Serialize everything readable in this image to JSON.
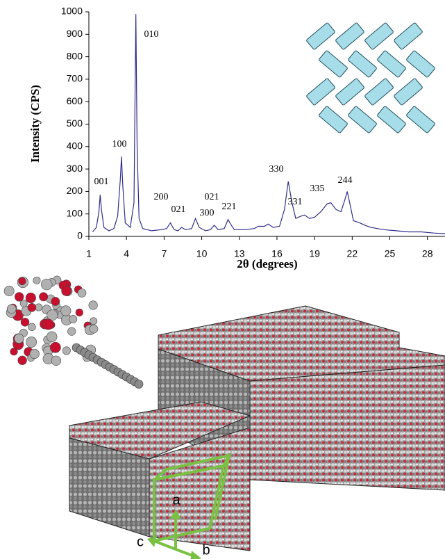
{
  "chart_data": {
    "type": "line",
    "x_label": "2θ (degrees)",
    "y_label": "Intensity (CPS)",
    "xlim": [
      1,
      29.4
    ],
    "ylim": [
      0,
      1000
    ],
    "xticks": [
      1,
      4,
      7,
      10,
      13,
      16,
      19,
      22,
      25,
      28
    ],
    "yticks": [
      0,
      100,
      200,
      300,
      400,
      500,
      600,
      700,
      800,
      900,
      1000
    ],
    "color": "#2e2e8c",
    "grid": false,
    "x": [
      1.3,
      1.6,
      1.8,
      1.9,
      2.0,
      2.2,
      2.6,
      3.0,
      3.3,
      3.5,
      3.6,
      3.7,
      3.9,
      4.3,
      4.6,
      4.75,
      4.85,
      5.0,
      5.3,
      6.0,
      6.8,
      7.2,
      7.5,
      7.8,
      8.1,
      8.4,
      8.7,
      9.2,
      9.5,
      9.8,
      10.3,
      10.7,
      11.0,
      11.3,
      11.8,
      12.1,
      12.3,
      12.6,
      13.5,
      14.2,
      14.5,
      15.0,
      15.3,
      15.7,
      16.2,
      16.6,
      16.9,
      17.2,
      17.5,
      17.9,
      18.2,
      18.6,
      19.0,
      19.5,
      20.0,
      20.3,
      20.7,
      21.1,
      21.4,
      21.6,
      21.8,
      22.1,
      22.6,
      23.0,
      23.5,
      24.5,
      25.5,
      26.5,
      27.5,
      28.5,
      29.4
    ],
    "values": [
      20,
      40,
      110,
      185,
      120,
      40,
      25,
      35,
      90,
      250,
      355,
      230,
      60,
      40,
      150,
      990,
      400,
      80,
      35,
      25,
      30,
      35,
      60,
      30,
      25,
      40,
      30,
      35,
      80,
      40,
      25,
      30,
      50,
      30,
      35,
      75,
      55,
      30,
      30,
      35,
      45,
      45,
      55,
      40,
      45,
      120,
      245,
      150,
      80,
      90,
      95,
      80,
      85,
      110,
      145,
      150,
      120,
      110,
      160,
      200,
      150,
      70,
      60,
      50,
      40,
      30,
      25,
      20,
      20,
      15,
      12
    ],
    "annotations": [
      "001",
      "100",
      "010",
      "200",
      "021",
      "021",
      "300",
      "221",
      "330",
      "331",
      "335",
      "244"
    ]
  },
  "structure": {
    "axis_labels": [
      "a",
      "b",
      "c"
    ]
  }
}
